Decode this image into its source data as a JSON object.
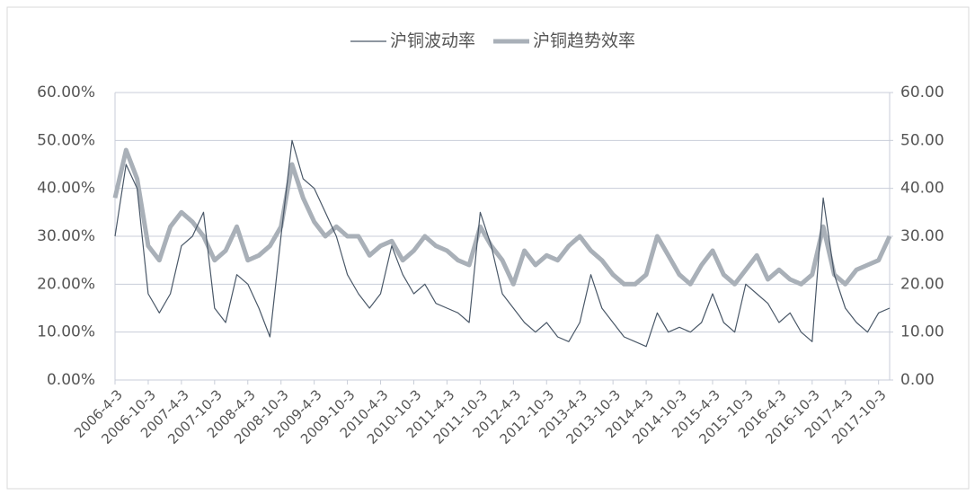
{
  "chart_data": {
    "type": "line",
    "categories": [
      "2006-4-3",
      null,
      null,
      "2006-10-3",
      null,
      null,
      "2007-4-3",
      null,
      null,
      "2007-10-3",
      null,
      null,
      "2008-4-3",
      null,
      null,
      "2008-10-3",
      null,
      null,
      "2009-4-3",
      null,
      null,
      "2009-10-3",
      null,
      null,
      "2010-4-3",
      null,
      null,
      "2010-10-3",
      null,
      null,
      "2011-4-3",
      null,
      null,
      "2011-10-3",
      null,
      null,
      "2012-4-3",
      null,
      null,
      "2012-10-3",
      null,
      null,
      "2013-4-3",
      null,
      null,
      "2013-10-3",
      null,
      null,
      "2014-4-3",
      null,
      null,
      "2014-10-3",
      null,
      null,
      "2015-4-3",
      null,
      null,
      "2015-10-3",
      null,
      null,
      "2016-4-3",
      null,
      null,
      "2016-10-3",
      null,
      null,
      "2017-4-3",
      null,
      null,
      "2017-10-3",
      null
    ],
    "series": [
      {
        "name": "沪铜波动率",
        "color": "#4a5868",
        "axis": "y",
        "values": [
          30,
          45,
          40,
          18,
          14,
          18,
          28,
          30,
          35,
          15,
          12,
          22,
          20,
          15,
          9,
          30,
          50,
          42,
          40,
          35,
          30,
          22,
          18,
          15,
          18,
          28,
          22,
          18,
          20,
          16,
          15,
          14,
          12,
          35,
          28,
          18,
          15,
          12,
          10,
          12,
          9,
          8,
          12,
          22,
          15,
          12,
          9,
          8,
          7,
          14,
          10,
          11,
          10,
          12,
          18,
          12,
          10,
          20,
          18,
          16,
          12,
          14,
          10,
          8,
          38,
          22,
          15,
          12,
          10,
          14,
          15
        ]
      },
      {
        "name": "沪铜趋势效率",
        "color": "#a9b0b8",
        "axis": "y2",
        "values": [
          38,
          48,
          42,
          28,
          25,
          32,
          35,
          33,
          30,
          25,
          27,
          32,
          25,
          26,
          28,
          32,
          45,
          38,
          33,
          30,
          32,
          30,
          30,
          26,
          28,
          29,
          25,
          27,
          30,
          28,
          27,
          25,
          24,
          32,
          28,
          25,
          20,
          27,
          24,
          26,
          25,
          28,
          30,
          27,
          25,
          22,
          20,
          20,
          22,
          30,
          26,
          22,
          20,
          24,
          27,
          22,
          20,
          23,
          26,
          21,
          23,
          21,
          20,
          22,
          32,
          22,
          20,
          23,
          24,
          25,
          30
        ]
      }
    ],
    "ylim": [
      0,
      60
    ],
    "yticks": [
      {
        "value": 0,
        "label": "0.00%"
      },
      {
        "value": 10,
        "label": "10.00%"
      },
      {
        "value": 20,
        "label": "20.00%"
      },
      {
        "value": 30,
        "label": "30.00%"
      },
      {
        "value": 40,
        "label": "40.00%"
      },
      {
        "value": 50,
        "label": "50.00%"
      },
      {
        "value": 60,
        "label": "60.00%"
      }
    ],
    "y2lim": [
      0,
      60
    ],
    "y2ticks": [
      {
        "value": 0,
        "label": "0.00"
      },
      {
        "value": 10,
        "label": "10.00"
      },
      {
        "value": 20,
        "label": "20.00"
      },
      {
        "value": 30,
        "label": "30.00"
      },
      {
        "value": 40,
        "label": "40.00"
      },
      {
        "value": 50,
        "label": "50.00"
      },
      {
        "value": 60,
        "label": "60.00"
      }
    ],
    "grid": true,
    "legend": "top"
  }
}
